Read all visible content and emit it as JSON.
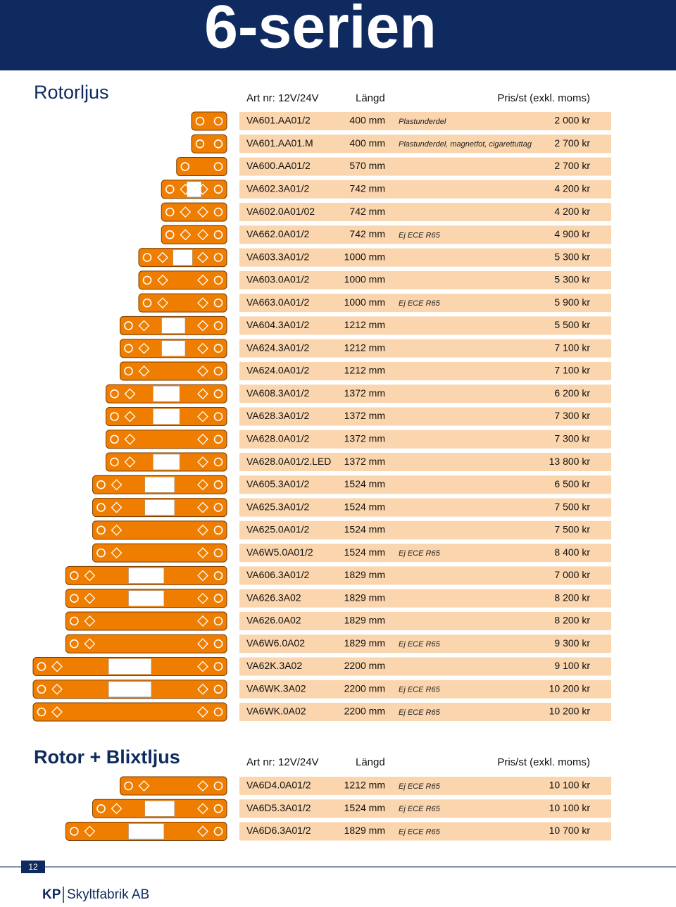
{
  "header": {
    "title": "6-serien"
  },
  "sections": [
    {
      "title": "Rotorljus",
      "columns": [
        "Art nr: 12V/24V",
        "Längd",
        "Pris/st (exkl. moms)"
      ],
      "rows": [
        {
          "art": "VA601.AA01/2",
          "length": "400 mm",
          "note": "Plastunderdel",
          "price": "2 000 kr"
        },
        {
          "art": "VA601.AA01.M",
          "length": "400 mm",
          "note": "Plastunderdel, magnetfot, cigarettuttag",
          "price": "2 700 kr"
        },
        {
          "art": "VA600.AA01/2",
          "length": "570 mm",
          "price": "2 700 kr"
        },
        {
          "art": "VA602.3A01/2",
          "length": "742 mm",
          "price": "4 200 kr"
        },
        {
          "art": "VA602.0A01/02",
          "length": "742 mm",
          "price": "4 200 kr"
        },
        {
          "art": "VA662.0A01/2",
          "length": "742 mm",
          "note": "Ej ECE R65",
          "price": "4 900 kr"
        },
        {
          "art": "VA603.3A01/2",
          "length": "1000 mm",
          "price": "5 300 kr"
        },
        {
          "art": "VA603.0A01/2",
          "length": "1000 mm",
          "price": "5 300 kr"
        },
        {
          "art": "VA663.0A01/2",
          "length": "1000 mm",
          "note": "Ej ECE R65",
          "price": "5 900 kr"
        },
        {
          "art": "VA604.3A01/2",
          "length": "1212 mm",
          "price": "5 500 kr"
        },
        {
          "art": "VA624.3A01/2",
          "length": "1212 mm",
          "price": "7 100 kr"
        },
        {
          "art": "VA624.0A01/2",
          "length": "1212 mm",
          "price": "7 100 kr"
        },
        {
          "art": "VA608.3A01/2",
          "length": "1372 mm",
          "price": "6 200 kr"
        },
        {
          "art": "VA628.3A01/2",
          "length": "1372 mm",
          "price": "7 300 kr"
        },
        {
          "art": "VA628.0A01/2",
          "length": "1372 mm",
          "price": "7 300 kr"
        },
        {
          "art": "VA628.0A01/2.LED",
          "length": "1372 mm",
          "price": "13 800 kr"
        },
        {
          "art": "VA605.3A01/2",
          "length": "1524 mm",
          "price": "6 500 kr"
        },
        {
          "art": "VA625.3A01/2",
          "length": "1524 mm",
          "price": "7 500 kr"
        },
        {
          "art": "VA625.0A01/2",
          "length": "1524 mm",
          "price": "7 500 kr"
        },
        {
          "art": "VA6W5.0A01/2",
          "length": "1524 mm",
          "note": "Ej ECE R65",
          "price": "8 400 kr"
        },
        {
          "art": "VA606.3A01/2",
          "length": "1829 mm",
          "price": "7 000 kr"
        },
        {
          "art": "VA626.3A02",
          "length": "1829 mm",
          "price": "8 200 kr"
        },
        {
          "art": "VA626.0A02",
          "length": "1829 mm",
          "price": "8 200 kr"
        },
        {
          "art": "VA6W6.0A02",
          "length": "1829 mm",
          "note": "Ej ECE R65",
          "price": "9 300 kr"
        },
        {
          "art": "VA62K.3A02",
          "length": "2200 mm",
          "price": "9 100 kr"
        },
        {
          "art": "VA6WK.3A02",
          "length": "2200 mm",
          "note": "Ej ECE R65",
          "price": "10 200 kr"
        },
        {
          "art": "VA6WK.0A02",
          "length": "2200 mm",
          "note": "Ej ECE R65",
          "price": "10 200 kr"
        }
      ]
    },
    {
      "title": "Rotor + Blixtljus",
      "columns": [
        "Art nr: 12V/24V",
        "Längd",
        "Pris/st (exkl. moms)"
      ],
      "rows": [
        {
          "art": "VA6D4.0A01/2",
          "length": "1212 mm",
          "note": "Ej ECE R65",
          "price": "10 100 kr"
        },
        {
          "art": "VA6D5.3A01/2",
          "length": "1524 mm",
          "note": "Ej ECE R65",
          "price": "10 100 kr"
        },
        {
          "art": "VA6D6.3A01/2",
          "length": "1829 mm",
          "note": "Ej ECE R65",
          "price": "10 700 kr"
        }
      ]
    }
  ],
  "footer": {
    "page": "12",
    "brand": "KP",
    "company": "Skyltfabrik AB"
  }
}
